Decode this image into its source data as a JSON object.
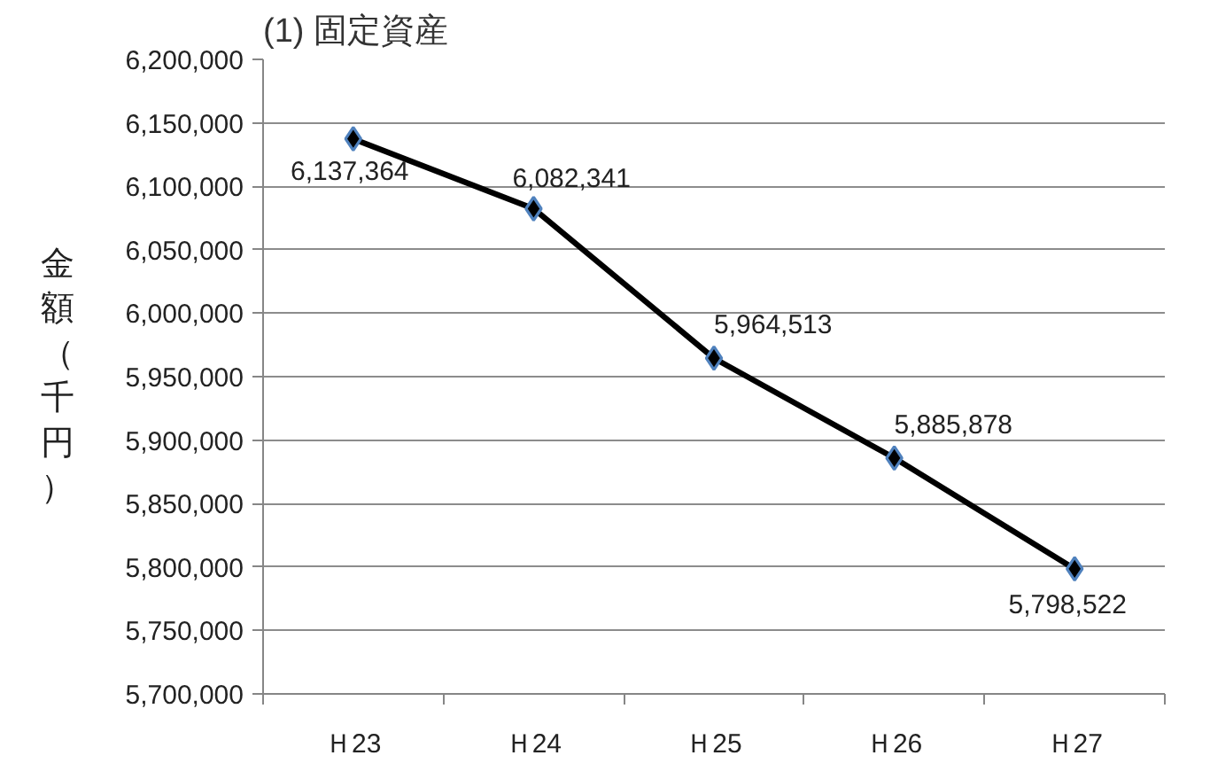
{
  "chart_data": {
    "type": "line",
    "title": "(1) 固定資産",
    "ylabel": "金額（千円）",
    "categories": [
      "Ｈ23",
      "Ｈ24",
      "Ｈ25",
      "Ｈ26",
      "Ｈ27"
    ],
    "series": [
      {
        "color": "#000000",
        "values": [
          6137364,
          6082341,
          5964513,
          5885878,
          5798522
        ],
        "value_labels": [
          "6,137,364",
          "6,082,341",
          "5,964,513",
          "5,885,878",
          "5,798,522"
        ]
      }
    ],
    "ylim": [
      5700000,
      6200000
    ],
    "yticks": [
      {
        "value": 5700000,
        "label": "5,700,000"
      },
      {
        "value": 5750000,
        "label": "5,750,000"
      },
      {
        "value": 5800000,
        "label": "5,800,000"
      },
      {
        "value": 5850000,
        "label": "5,850,000"
      },
      {
        "value": 5900000,
        "label": "5,900,000"
      },
      {
        "value": 5950000,
        "label": "5,950,000"
      },
      {
        "value": 6000000,
        "label": "6,000,000"
      },
      {
        "value": 6050000,
        "label": "6,050,000"
      },
      {
        "value": 6100000,
        "label": "6,100,000"
      },
      {
        "value": 6150000,
        "label": "6,150,000"
      },
      {
        "value": 6200000,
        "label": "6,200,000"
      }
    ],
    "grid": "y",
    "marker": "diamond",
    "line_style": "solid"
  }
}
